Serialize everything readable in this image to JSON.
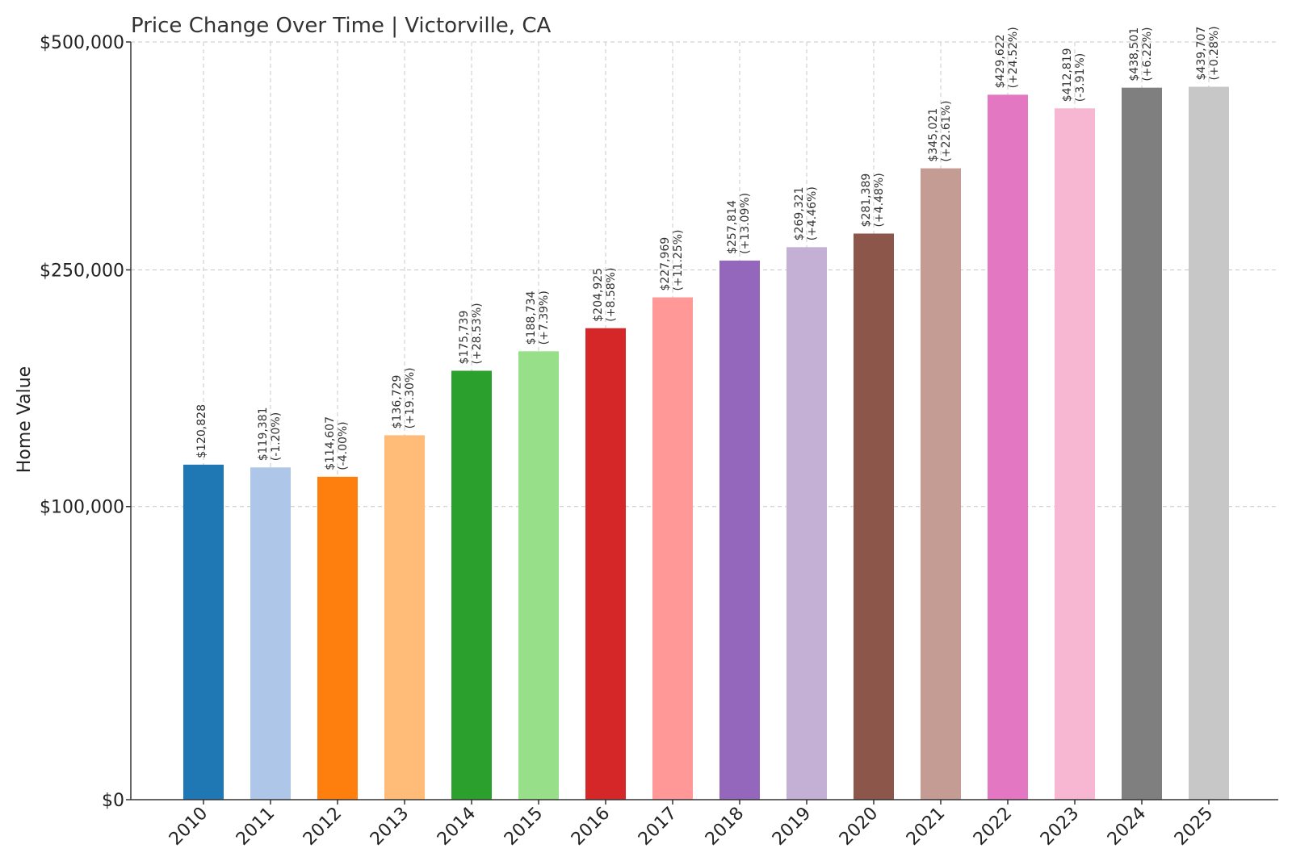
{
  "chart_data": {
    "type": "bar",
    "title": "Price Change Over Time | Victorville, CA",
    "xlabel": "",
    "ylabel": "Home Value",
    "categories": [
      "2010",
      "2011",
      "2012",
      "2013",
      "2014",
      "2015",
      "2016",
      "2017",
      "2018",
      "2019",
      "2020",
      "2021",
      "2022",
      "2023",
      "2024",
      "2025"
    ],
    "values": [
      120828,
      119381,
      114607,
      136729,
      175739,
      188734,
      204925,
      227969,
      257814,
      269321,
      281389,
      345021,
      429622,
      412819,
      438501,
      439707
    ],
    "value_labels": [
      "$120,828",
      "$119,381",
      "$114,607",
      "$136,729",
      "$175,739",
      "$188,734",
      "$204,925",
      "$227,969",
      "$257,814",
      "$269,321",
      "$281,389",
      "$345,021",
      "$429,622",
      "$412,819",
      "$438,501",
      "$439,707"
    ],
    "change_labels": [
      "",
      "(-1.20%)",
      "(-4.00%)",
      "(+19.30%)",
      "(+28.53%)",
      "(+7.39%)",
      "(+8.58%)",
      "(+11.25%)",
      "(+13.09%)",
      "(+4.46%)",
      "(+4.48%)",
      "(+22.61%)",
      "(+24.52%)",
      "(-3.91%)",
      "(+6.22%)",
      "(+0.28%)"
    ],
    "colors": [
      "#1f77b4",
      "#aec7e8",
      "#ff7f0e",
      "#ffbb78",
      "#2ca02c",
      "#98df8a",
      "#d62728",
      "#ff9896",
      "#9467bd",
      "#c5b0d5",
      "#8c564b",
      "#c49c94",
      "#e377c2",
      "#f7b6d2",
      "#7f7f7f",
      "#c7c7c7"
    ],
    "yticks": [
      0,
      100000,
      250000,
      500000
    ],
    "ytick_labels": [
      "$0",
      "$100,000",
      "$250,000",
      "$500,000"
    ],
    "ylim": [
      0,
      500000
    ],
    "y_scale": "symlog",
    "grid": true,
    "legend": "none"
  }
}
